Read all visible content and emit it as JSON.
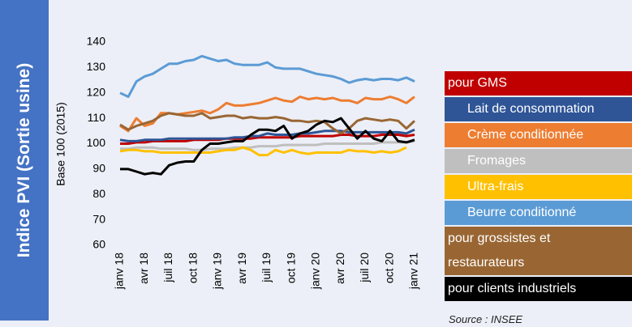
{
  "chart_data": {
    "type": "line",
    "title": "Indice PVI (Sortie usine)",
    "ylabel": "Base 100 (2015)",
    "source": "Source : INSEE",
    "categories": [
      "janv 18",
      null,
      null,
      "avr 18",
      null,
      null,
      "juil 18",
      null,
      null,
      "oct 18",
      null,
      null,
      "janv 19",
      null,
      null,
      "avr 19",
      null,
      null,
      "juil 19",
      null,
      null,
      "oct 19",
      null,
      null,
      "janv 20",
      null,
      null,
      "avr 20",
      null,
      null,
      "juil 20",
      null,
      null,
      "oct 20",
      null,
      null,
      "janv 21"
    ],
    "ylim": [
      60,
      140
    ],
    "yticks": [
      60,
      70,
      80,
      90,
      100,
      110,
      120,
      130,
      140
    ],
    "grid": false,
    "series": [
      {
        "name": "pour GMS",
        "color": "#c00000",
        "values": [
          100,
          100,
          100.5,
          100.5,
          101,
          101,
          101,
          101,
          101,
          101.5,
          101.5,
          101.5,
          101.5,
          102,
          102,
          102,
          102,
          102.5,
          102.5,
          102.5,
          102.5,
          102.5,
          103,
          103,
          103,
          103,
          103,
          103.5,
          103.5,
          103,
          103,
          103,
          103.5,
          103.5,
          103.5,
          103,
          103.5
        ]
      },
      {
        "name": "Lait de consommation",
        "color": "#2f5597",
        "values": [
          101.5,
          101,
          101,
          101.5,
          101.5,
          101.5,
          102,
          102,
          102,
          102,
          102,
          102,
          102,
          102,
          102.5,
          102.5,
          103,
          103,
          104,
          103.5,
          103.5,
          103.5,
          104,
          104,
          104.5,
          105,
          105,
          105,
          104.5,
          104.5,
          104.5,
          104.5,
          104.5,
          104.5,
          104.5,
          104,
          105.5
        ]
      },
      {
        "name": "Crème conditionnée",
        "color": "#ed7d31",
        "values": [
          107,
          105,
          110,
          107,
          108,
          112,
          112,
          111.5,
          112,
          112.5,
          113,
          112,
          113.5,
          116,
          115,
          115,
          115.5,
          116,
          117,
          118,
          117,
          116.5,
          118.5,
          117.5,
          118,
          117.5,
          118,
          117,
          117,
          116,
          118,
          117.5,
          117.5,
          118.5,
          117.5,
          116,
          118.5
        ]
      },
      {
        "name": "Fromages",
        "color": "#bfbfbf",
        "values": [
          98,
          98,
          98.5,
          98.5,
          98.5,
          98,
          98,
          98,
          98,
          97.5,
          97.5,
          98,
          98,
          98,
          98.5,
          98.5,
          98.5,
          99,
          99,
          99,
          99.5,
          99.5,
          99.5,
          99.5,
          99.5,
          100,
          100,
          100,
          100,
          100,
          100,
          100,
          100.5,
          100.5,
          100.5,
          100.5,
          101
        ]
      },
      {
        "name": "Ultra-frais",
        "color": "#ffc000",
        "values": [
          97,
          97.5,
          97.5,
          97,
          97,
          96.5,
          96.5,
          96.5,
          96.5,
          96.5,
          96.5,
          96.5,
          97,
          97.5,
          97.5,
          98.5,
          97.5,
          95.5,
          95.5,
          97.5,
          96.5,
          97.5,
          96.5,
          96,
          96.5,
          96.5,
          96.5,
          96.5,
          97.5,
          97,
          97,
          96.5,
          97,
          96.5,
          97,
          98.5,
          null
        ]
      },
      {
        "name": "Beurre conditionné",
        "color": "#5b9bd5",
        "values": [
          120,
          118.5,
          124.5,
          126.5,
          127.5,
          129.5,
          131.5,
          131.5,
          132.5,
          133,
          134.5,
          133.5,
          132.5,
          133,
          131.5,
          131,
          131,
          131,
          132,
          130,
          129.5,
          129.5,
          129.5,
          128.5,
          127.5,
          127,
          126.5,
          125.5,
          124,
          125,
          125.5,
          125,
          125.5,
          125.5,
          125,
          126,
          124.5
        ]
      },
      {
        "name": "pour grossistes et restaurateurs",
        "color": "#996633",
        "values": [
          107.5,
          105.5,
          107,
          108,
          109,
          111,
          112,
          111.5,
          111,
          111,
          112,
          110,
          110.5,
          111,
          111,
          110,
          110.5,
          110,
          110,
          110.5,
          110,
          109,
          109,
          108.5,
          109,
          108.5,
          106,
          104,
          106,
          109,
          110,
          109.5,
          109,
          109.5,
          109,
          106,
          109
        ]
      },
      {
        "name": "pour clients industriels",
        "color": "#000000",
        "values": [
          90,
          90,
          89,
          88,
          88.5,
          88,
          91.5,
          92.5,
          93,
          93,
          97.5,
          100,
          100,
          100.5,
          101,
          101,
          103.5,
          105.5,
          105.5,
          105,
          107,
          102,
          104,
          105,
          107.5,
          109,
          108.5,
          110,
          106,
          102,
          105,
          102,
          101,
          105,
          101,
          100.5,
          101.5
        ]
      }
    ]
  }
}
